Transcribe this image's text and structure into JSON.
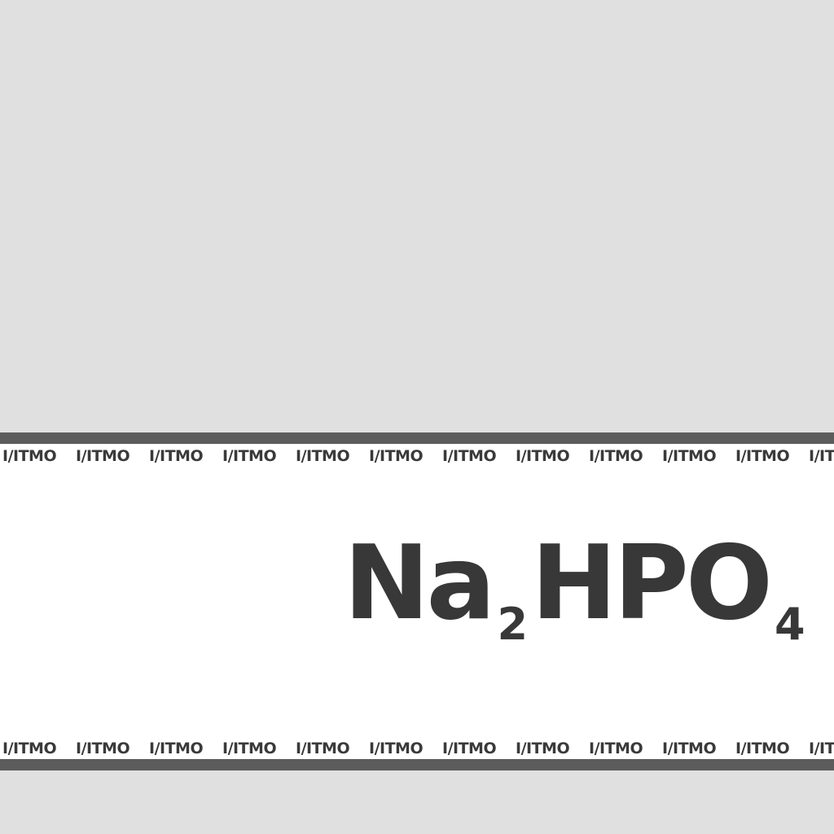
{
  "brand": {
    "logo_text": "I/ITMO",
    "repeat_count": 12
  },
  "formula": {
    "parts": [
      {
        "text": "Na",
        "sub": false
      },
      {
        "text": "2",
        "sub": true
      },
      {
        "text": "HPO",
        "sub": false
      },
      {
        "text": "4",
        "sub": true
      }
    ]
  },
  "colors": {
    "background": "#e0e0e0",
    "label": "#ffffff",
    "bars": "#5c5c5c",
    "ink": "#383838"
  }
}
